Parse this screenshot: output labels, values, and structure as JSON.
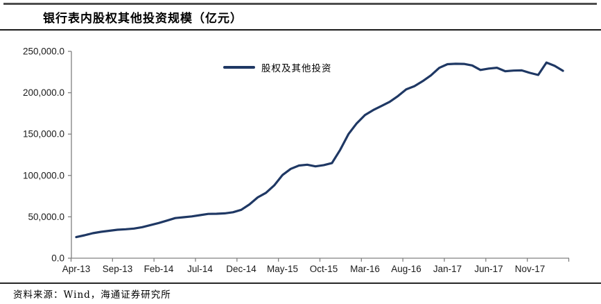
{
  "header": {
    "title": "银行表内股权其他投资规模（亿元）"
  },
  "source": {
    "text": "资料来源：Wind，海通证券研究所"
  },
  "chart_data": {
    "type": "line",
    "title": "银行表内股权其他投资规模（亿元）",
    "xlabel": "",
    "ylabel": "",
    "unit": "亿元",
    "ylim": [
      0,
      250000
    ],
    "grid": false,
    "legend_position": "top-center",
    "line_color": "#1f3864",
    "axis_color": "#808080",
    "label_color": "#1a1a1a",
    "y_tick_labels": [
      "0.0",
      "50,000.0",
      "100,000.0",
      "150,000.0",
      "200,000.0",
      "250,000.0"
    ],
    "x_tick_labels": [
      "Apr-13",
      "Sep-13",
      "Feb-14",
      "Jul-14",
      "Dec-14",
      "May-15",
      "Oct-15",
      "Mar-16",
      "Aug-16",
      "Jan-17",
      "Jun-17",
      "Nov-17"
    ],
    "x": [
      "Apr-13",
      "May-13",
      "Jun-13",
      "Jul-13",
      "Aug-13",
      "Sep-13",
      "Oct-13",
      "Nov-13",
      "Dec-13",
      "Jan-14",
      "Feb-14",
      "Mar-14",
      "Apr-14",
      "May-14",
      "Jun-14",
      "Jul-14",
      "Aug-14",
      "Sep-14",
      "Oct-14",
      "Nov-14",
      "Dec-14",
      "Jan-15",
      "Feb-15",
      "Mar-15",
      "Apr-15",
      "May-15",
      "Jun-15",
      "Jul-15",
      "Aug-15",
      "Sep-15",
      "Oct-15",
      "Nov-15",
      "Dec-15",
      "Jan-16",
      "Feb-16",
      "Mar-16",
      "Apr-16",
      "May-16",
      "Jun-16",
      "Jul-16",
      "Aug-16",
      "Sep-16",
      "Oct-16",
      "Nov-16",
      "Dec-16",
      "Jan-17",
      "Feb-17",
      "Mar-17",
      "Apr-17",
      "May-17",
      "Jun-17",
      "Jul-17",
      "Aug-17",
      "Sep-17",
      "Oct-17",
      "Nov-17",
      "Dec-17",
      "Jan-18",
      "Feb-18",
      "Mar-18"
    ],
    "series": [
      {
        "name": "股权及其他投资",
        "values": [
          25500,
          27700,
          30200,
          31900,
          33100,
          34400,
          35000,
          35800,
          37500,
          40000,
          42500,
          45500,
          48500,
          49500,
          50500,
          52000,
          53500,
          53700,
          54200,
          55500,
          58500,
          65000,
          73500,
          79000,
          88000,
          100500,
          108000,
          112000,
          113000,
          111000,
          112500,
          115000,
          131000,
          150000,
          163000,
          173000,
          179000,
          184000,
          189000,
          196000,
          204000,
          208000,
          214000,
          221000,
          230000,
          234500,
          235000,
          234800,
          233000,
          227500,
          229200,
          230200,
          226000,
          226800,
          227000,
          224000,
          221500,
          236500,
          232500,
          226500
        ]
      }
    ]
  },
  "legend": {
    "label": "股权及其他投资"
  }
}
